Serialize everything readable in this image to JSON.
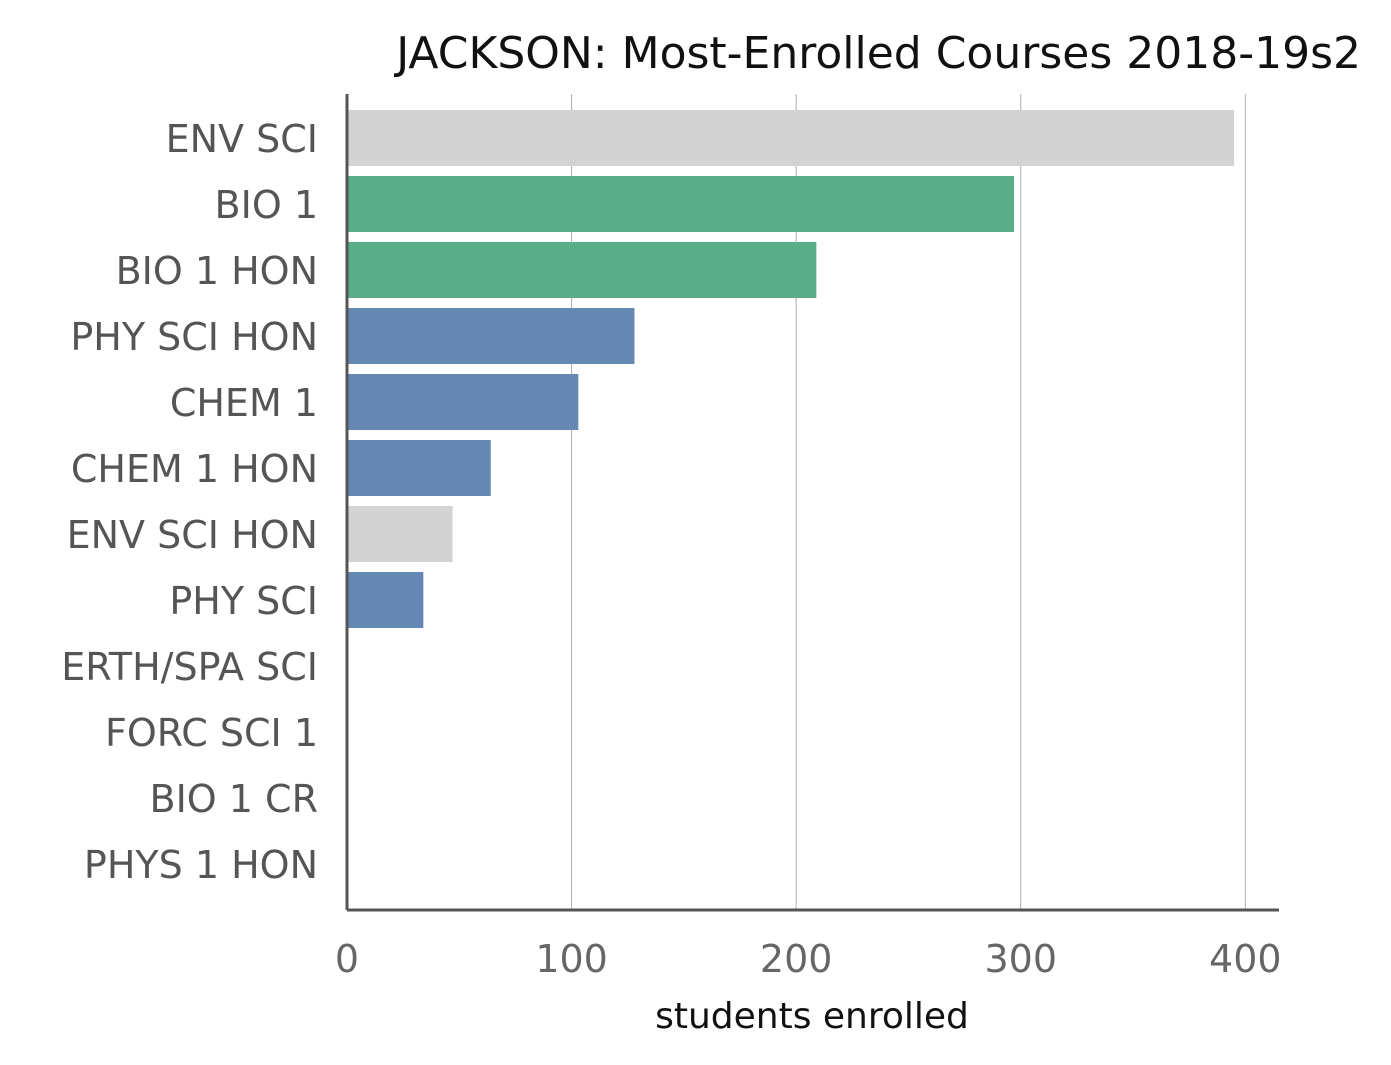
{
  "chart_data": {
    "type": "bar",
    "orientation": "horizontal",
    "title": "JACKSON: Most-Enrolled Courses 2018-19s2",
    "xlabel": "students enrolled",
    "ylabel": "",
    "xlim": [
      0,
      415
    ],
    "xticks": [
      0,
      100,
      200,
      300,
      400
    ],
    "grid": "vertical",
    "categories": [
      "ENV SCI",
      "BIO 1",
      "BIO 1 HON",
      "PHY SCI HON",
      "CHEM 1",
      "CHEM 1 HON",
      "ENV SCI HON",
      "PHY SCI",
      "ERTH/SPA SCI",
      "FORC SCI 1",
      "BIO 1 CR",
      "PHYS 1 HON"
    ],
    "values": [
      395,
      297,
      209,
      128,
      103,
      64,
      47,
      34,
      0,
      0,
      0,
      0
    ],
    "bar_colors": [
      "#d3d3d3",
      "#58ae89",
      "#58ae89",
      "#6488b3",
      "#6488b3",
      "#6488b3",
      "#d3d3d3",
      "#6488b3",
      "#d3d3d3",
      "#d3d3d3",
      "#d3d3d3",
      "#d3d3d3"
    ]
  }
}
